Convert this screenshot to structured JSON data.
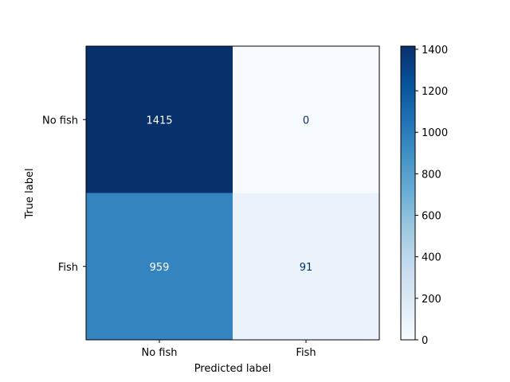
{
  "chart_data": {
    "type": "heatmap",
    "title": "",
    "xlabel": "Predicted label",
    "ylabel": "True label",
    "x_categories": [
      "No fish",
      "Fish"
    ],
    "y_categories": [
      "No fish",
      "Fish"
    ],
    "values": [
      [
        1415,
        0
      ],
      [
        959,
        91
      ]
    ],
    "cell_labels": [
      [
        "1415",
        "0"
      ],
      [
        "959",
        "91"
      ]
    ],
    "colormap": "Blues",
    "colorbar": {
      "min": 0,
      "max": 1415,
      "ticks": [
        0,
        200,
        400,
        600,
        800,
        1000,
        1200,
        1400
      ],
      "tick_labels": [
        "0",
        "200",
        "400",
        "600",
        "800",
        "1000",
        "1200",
        "1400"
      ]
    },
    "grid": false,
    "colors": {
      "low": "#f7fbff",
      "high": "#08306b",
      "text_on_dark": "#ffffff",
      "text_on_light": "#08306b"
    }
  }
}
